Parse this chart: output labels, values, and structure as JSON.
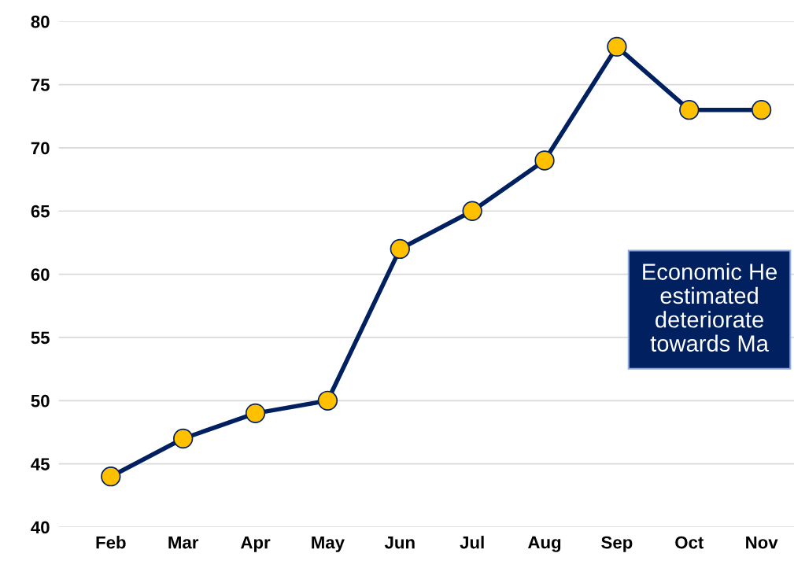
{
  "chart_data": {
    "type": "line",
    "categories": [
      "Feb",
      "Mar",
      "Apr",
      "May",
      "Jun",
      "Jul",
      "Aug",
      "Sep",
      "Oct",
      "Nov"
    ],
    "series": [
      {
        "color": "#002060",
        "values": [
          44,
          47,
          49,
          50,
          62,
          65,
          69,
          78,
          73,
          73
        ]
      }
    ],
    "ylim": [
      40,
      80
    ],
    "yticks": [
      40,
      45,
      50,
      55,
      60,
      65,
      70,
      75,
      80
    ],
    "grid": "y",
    "marker": "circle",
    "line_style": "solid",
    "legend": false,
    "annotations": [
      "Economic He\nestimated\ndeteriorate\ntowards Ma"
    ]
  }
}
